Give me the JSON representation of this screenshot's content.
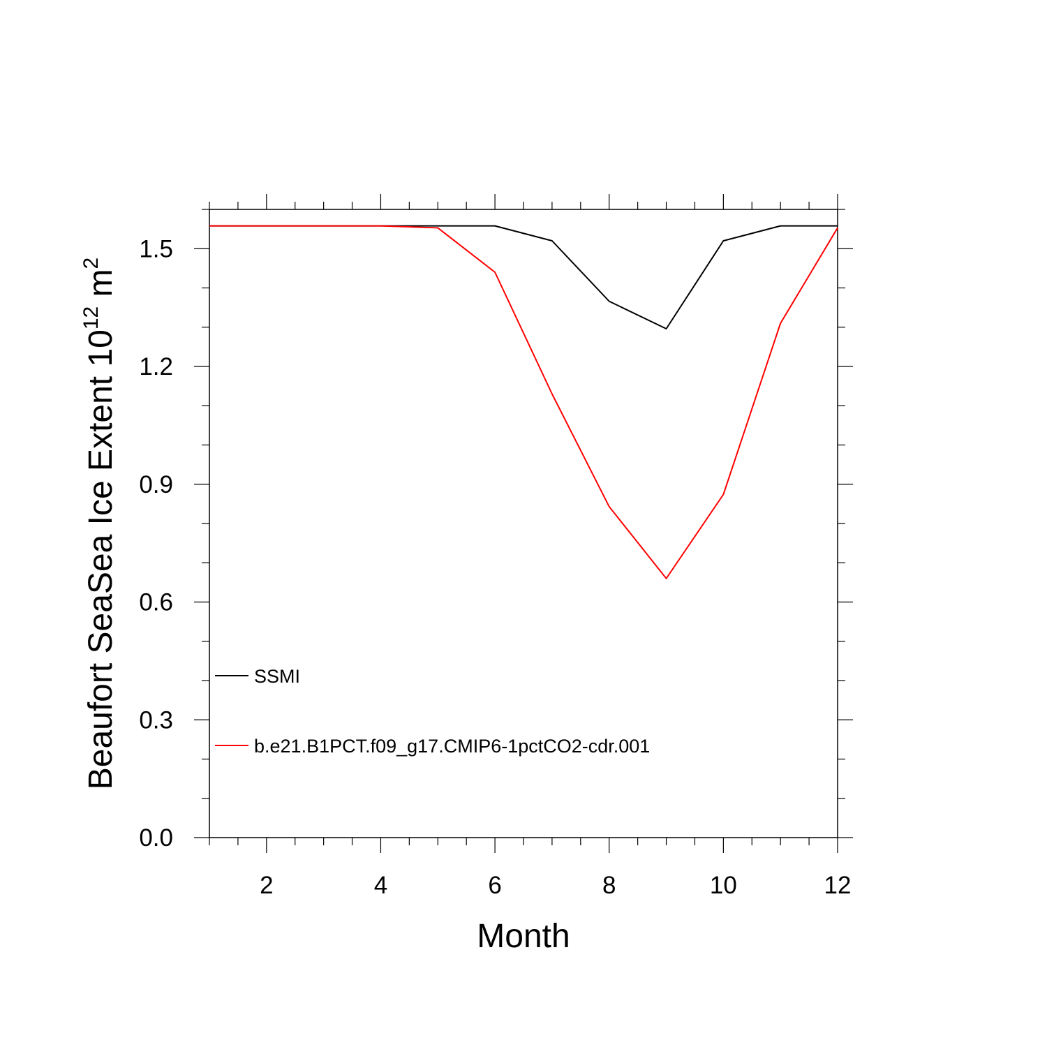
{
  "chart_data": {
    "type": "line",
    "xlabel": "Month",
    "ylabel_main": "Beaufort SeaSea Ice Extent 10",
    "ylabel_exp1": "12",
    "ylabel_unit": " m",
    "ylabel_exp2": "2",
    "xlim": [
      1,
      12
    ],
    "ylim": [
      0,
      1.6
    ],
    "xticks": [
      2,
      4,
      6,
      8,
      10,
      12
    ],
    "xtick_labels": [
      "2",
      "4",
      "6",
      "8",
      "10",
      "12"
    ],
    "yticks": [
      0,
      0.3,
      0.6,
      0.9,
      1.2,
      1.5
    ],
    "ytick_labels": [
      "0.0",
      "0.3",
      "0.6",
      "0.9",
      "1.2",
      "1.5"
    ],
    "grid": false,
    "legend_position": "bottom-left",
    "x": [
      1,
      2,
      3,
      4,
      5,
      6,
      7,
      8,
      9,
      10,
      11,
      12
    ],
    "series": [
      {
        "name": "SSMI",
        "color": "#000000",
        "values": [
          1.558,
          1.558,
          1.558,
          1.558,
          1.558,
          1.558,
          1.52,
          1.366,
          1.296,
          1.52,
          1.558,
          1.558
        ]
      },
      {
        "name": "b.e21.B1PCT.f09_g17.CMIP6-1pctCO2-cdr.001",
        "color": "#ff0000",
        "values": [
          1.558,
          1.558,
          1.558,
          1.558,
          1.553,
          1.44,
          1.13,
          0.843,
          0.66,
          0.874,
          1.31,
          1.553
        ]
      }
    ]
  }
}
